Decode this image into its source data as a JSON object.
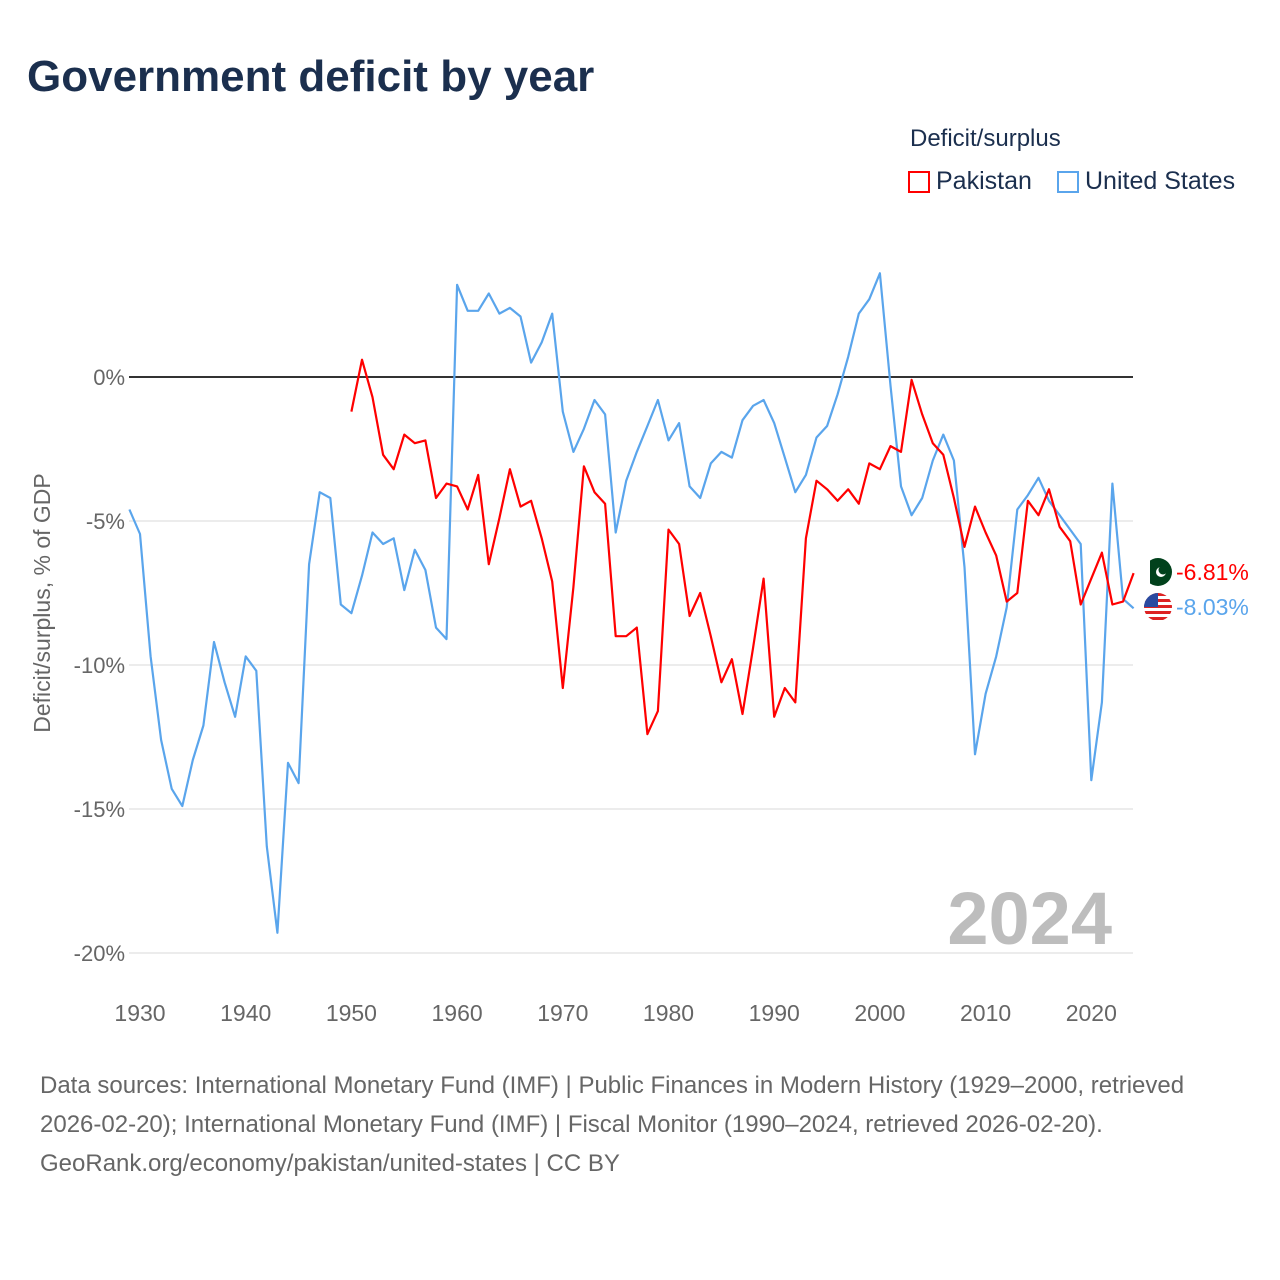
{
  "title": "Government deficit by year",
  "legend": {
    "title": "Deficit/surplus",
    "items": [
      {
        "label": "Pakistan",
        "color": "#ff0000"
      },
      {
        "label": "United States",
        "color": "#5aa5ec"
      }
    ]
  },
  "year_label": "2024",
  "end_labels": {
    "pakistan": "-6.81%",
    "united_states": "-8.03%"
  },
  "footer": {
    "sources": "Data sources: International Monetary Fund (IMF) | Public Finances in Modern History (1929–2000, retrieved 2026-02-20); International Monetary Fund (IMF) | Fiscal Monitor (1990–2024, retrieved 2026-02-20).",
    "credit": "GeoRank.org/economy/pakistan/united-states | CC BY"
  },
  "chart_data": {
    "type": "line",
    "title": "Government deficit by year",
    "xlabel": "",
    "ylabel": "Deficit/surplus, % of GDP",
    "xlim": [
      1929,
      2024
    ],
    "ylim": [
      -20,
      3.6
    ],
    "x_ticks": [
      "1930",
      "1940",
      "1950",
      "1960",
      "1970",
      "1980",
      "1990",
      "2000",
      "2010",
      "2020"
    ],
    "y_ticks": [
      {
        "value": 0,
        "label": "0%"
      },
      {
        "value": -5,
        "label": "-5%"
      },
      {
        "value": -10,
        "label": "-10%"
      },
      {
        "value": -15,
        "label": "-15%"
      },
      {
        "value": -20,
        "label": "-20%"
      }
    ],
    "legend_position": "top-right",
    "series": [
      {
        "name": "Pakistan",
        "color": "#ff0000",
        "start_year": 1950,
        "values": [
          -1.2,
          0.6,
          -0.7,
          -2.7,
          -3.2,
          -2.0,
          -2.3,
          -2.2,
          -4.2,
          -3.7,
          -3.8,
          -4.6,
          -3.4,
          -6.5,
          -4.9,
          -3.2,
          -4.5,
          -4.3,
          -5.6,
          -7.1,
          -10.8,
          -7.3,
          -3.1,
          -4.0,
          -4.4,
          -9.0,
          -9.0,
          -8.7,
          -12.4,
          -11.6,
          -5.3,
          -5.8,
          -8.3,
          -7.5,
          -9.0,
          -10.6,
          -9.8,
          -11.7,
          -9.4,
          -7.0,
          -11.8,
          -10.8,
          -11.3,
          -5.6,
          -3.6,
          -3.9,
          -4.3,
          -3.9,
          -4.4,
          -3.0,
          -3.2,
          -2.4,
          -2.6,
          -0.1,
          -1.3,
          -2.3,
          -2.7,
          -4.2,
          -5.9,
          -4.5,
          -5.4,
          -6.2,
          -7.8,
          -7.5,
          -4.3,
          -4.8,
          -3.9,
          -5.2,
          -5.7,
          -7.9,
          -7.0,
          -6.1,
          -7.9,
          -7.8,
          -6.81
        ]
      },
      {
        "name": "United States",
        "color": "#5aa5ec",
        "start_year": 1929,
        "values": [
          -4.6,
          -5.45,
          -9.7,
          -12.6,
          -14.3,
          -14.9,
          -13.3,
          -12.1,
          -9.2,
          -10.6,
          -11.8,
          -9.7,
          -10.2,
          -16.3,
          -19.3,
          -13.4,
          -14.1,
          -6.5,
          -4.0,
          -4.2,
          -7.9,
          -8.2,
          -6.9,
          -5.4,
          -5.8,
          -5.6,
          -7.4,
          -6.0,
          -6.7,
          -8.7,
          -9.1,
          3.2,
          2.3,
          2.3,
          2.9,
          2.2,
          2.4,
          2.1,
          0.5,
          1.2,
          2.2,
          -1.2,
          -2.6,
          -1.8,
          -0.8,
          -1.3,
          -5.4,
          -3.6,
          -2.6,
          -1.7,
          -0.8,
          -2.2,
          -1.6,
          -3.8,
          -4.2,
          -3.0,
          -2.6,
          -2.8,
          -1.5,
          -1.0,
          -0.8,
          -1.6,
          -2.8,
          -4.0,
          -3.4,
          -2.1,
          -1.7,
          -0.6,
          0.7,
          2.2,
          2.7,
          3.6,
          -0.3,
          -3.8,
          -4.8,
          -4.2,
          -2.9,
          -2.0,
          -2.9,
          -6.6,
          -13.1,
          -11.0,
          -9.7,
          -8.0,
          -4.6,
          -4.1,
          -3.5,
          -4.3,
          -4.8,
          -5.3,
          -5.8,
          -14.0,
          -11.3,
          -3.7,
          -7.7,
          -8.03
        ]
      }
    ]
  }
}
